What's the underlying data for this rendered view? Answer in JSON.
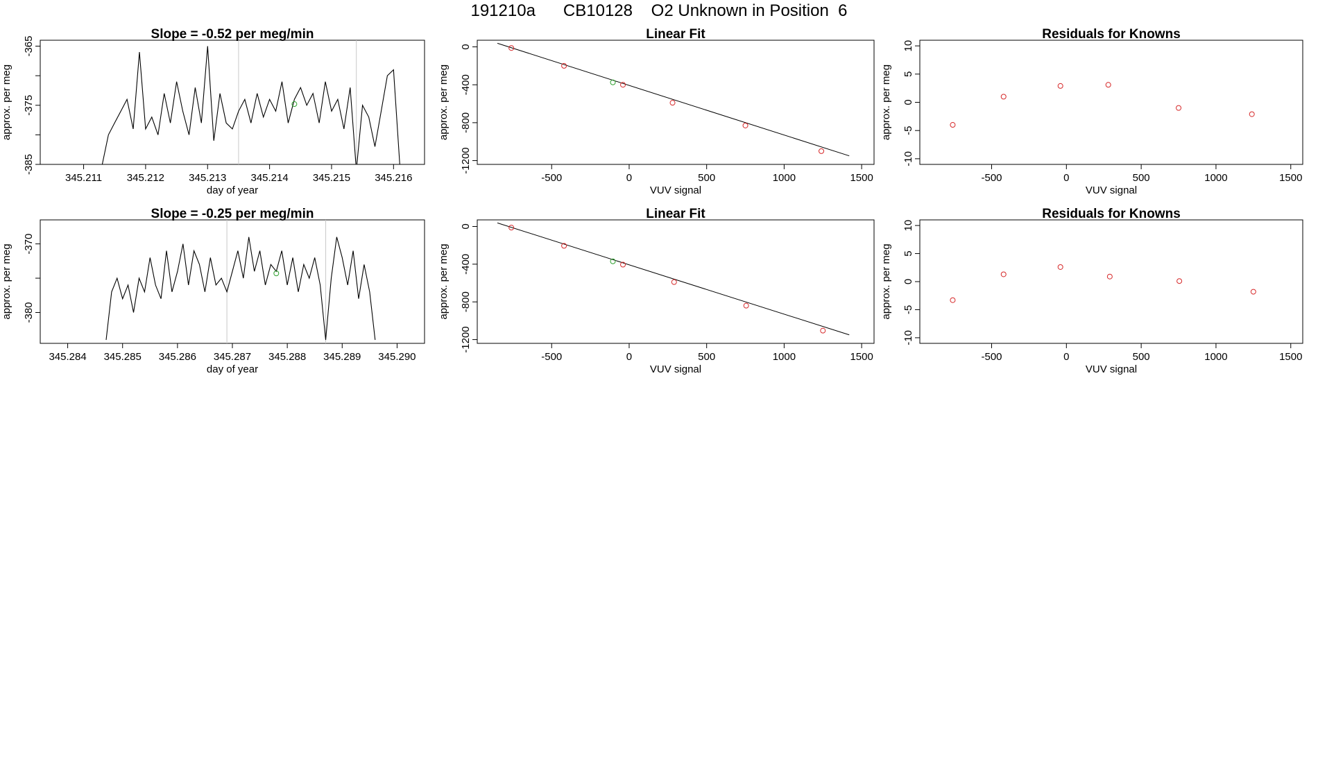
{
  "page": {
    "title": "191210a      CB10128    O2 Unknown in Position  6"
  },
  "colors": {
    "frame": "#000000",
    "line": "#000000",
    "known_points": "#d62728",
    "unknown_point": "#2ca02c",
    "marker_lines": "#c8c8c8"
  },
  "chart_data": [
    {
      "id": "ts1",
      "type": "line",
      "title": "Slope =  -0.52  per meg/min",
      "xlabel": "day of year",
      "ylabel": "approx. per meg",
      "xlim": [
        345.2103,
        345.2165
      ],
      "ylim": [
        -385,
        -364
      ],
      "xticks": [
        345.211,
        345.212,
        345.213,
        345.214,
        345.215,
        345.216
      ],
      "xtick_labels": [
        "345.211",
        "345.212",
        "345.213",
        "345.214",
        "345.215",
        "345.216"
      ],
      "yticks": [
        -385,
        -380,
        -375,
        -370,
        -365
      ],
      "ytick_labels": [
        "-385",
        "",
        "-375",
        "",
        "-365"
      ],
      "marker_lines": [
        345.2135,
        345.2154
      ],
      "unknown_point": {
        "x": 345.2144,
        "y": -374.8
      },
      "series": [
        {
          "x": [
            345.2113,
            345.2114,
            345.2115,
            345.2116,
            345.2117,
            345.2118,
            345.2119,
            345.212,
            345.2121,
            345.2122,
            345.2123,
            345.2124,
            345.2125,
            345.2126,
            345.2127,
            345.2128,
            345.2129,
            345.213,
            345.2131,
            345.2132,
            345.2133,
            345.2134,
            345.2135,
            345.2136,
            345.2137,
            345.2138,
            345.2139,
            345.214,
            345.2141,
            345.2142,
            345.2143,
            345.2144,
            345.2145,
            345.2146,
            345.2147,
            345.2148,
            345.2149,
            345.215,
            345.2151,
            345.2152,
            345.2153,
            345.2154,
            345.2155,
            345.2156,
            345.2157,
            345.2158,
            345.2159,
            345.216,
            345.2161
          ],
          "y": [
            -385,
            -380,
            -378,
            -376,
            -374,
            -379,
            -366,
            -379,
            -377,
            -380,
            -373,
            -378,
            -371,
            -376,
            -380,
            -372,
            -378,
            -365,
            -381,
            -373,
            -378,
            -379,
            -376,
            -374,
            -378,
            -373,
            -377,
            -374,
            -376,
            -371,
            -378,
            -374,
            -372,
            -375,
            -373,
            -378,
            -371,
            -376,
            -374,
            -379,
            -372,
            -386,
            -375,
            -377,
            -382,
            -376,
            -370,
            -369,
            -385
          ]
        }
      ]
    },
    {
      "id": "fit1",
      "type": "scatter",
      "title": "Linear Fit",
      "xlabel": "VUV signal",
      "ylabel": "approx. per meg",
      "xlim": [
        -980,
        1580
      ],
      "ylim": [
        -1240,
        70
      ],
      "xticks": [
        -500,
        0,
        500,
        1000,
        1500
      ],
      "xtick_labels": [
        "-500",
        "0",
        "500",
        "1000",
        "1500"
      ],
      "yticks": [
        0,
        -400,
        -800,
        -1200
      ],
      "ytick_labels": [
        "0",
        "-400",
        "-800",
        "-1200"
      ],
      "fit_line": {
        "x": [
          -850,
          1420
        ],
        "y": [
          38,
          -1150
        ]
      },
      "knowns": {
        "x": [
          -760,
          -420,
          -40,
          280,
          750,
          1240
        ],
        "y": [
          -12,
          -200,
          -400,
          -590,
          -830,
          -1100
        ]
      },
      "unknown_point": {
        "x": -105,
        "y": -375
      }
    },
    {
      "id": "res1",
      "type": "scatter",
      "title": "Residuals for Knowns",
      "xlabel": "VUV signal",
      "ylabel": "approx. per meg",
      "xlim": [
        -980,
        1580
      ],
      "ylim": [
        -11,
        11
      ],
      "xticks": [
        -500,
        0,
        500,
        1000,
        1500
      ],
      "xtick_labels": [
        "-500",
        "0",
        "500",
        "1000",
        "1500"
      ],
      "yticks": [
        -10,
        -5,
        0,
        5,
        10
      ],
      "ytick_labels": [
        "-10",
        "-5",
        "0",
        "5",
        "10"
      ],
      "knowns": {
        "x": [
          -760,
          -420,
          -40,
          280,
          750,
          1240
        ],
        "y": [
          -4.0,
          1.0,
          2.9,
          3.1,
          -1.0,
          -2.1
        ]
      }
    },
    {
      "id": "ts2",
      "type": "line",
      "title": "Slope =  -0.25  per meg/min",
      "xlabel": "day of year",
      "ylabel": "approx. per meg",
      "xlim": [
        345.2835,
        345.2905
      ],
      "ylim": [
        -384.5,
        -366.5
      ],
      "xticks": [
        345.284,
        345.285,
        345.286,
        345.287,
        345.288,
        345.289,
        345.29
      ],
      "xtick_labels": [
        "345.284",
        "345.285",
        "345.286",
        "345.287",
        "345.288",
        "345.289",
        "345.290"
      ],
      "yticks": [
        -380,
        -375,
        -370
      ],
      "ytick_labels": [
        "-380",
        "",
        "-370"
      ],
      "marker_lines": [
        345.2869,
        345.2887
      ],
      "unknown_point": {
        "x": 345.2878,
        "y": -374.3
      },
      "series": [
        {
          "x": [
            345.2847,
            345.2848,
            345.2849,
            345.285,
            345.2851,
            345.2852,
            345.2853,
            345.2854,
            345.2855,
            345.2856,
            345.2857,
            345.2858,
            345.2859,
            345.286,
            345.2861,
            345.2862,
            345.2863,
            345.2864,
            345.2865,
            345.2866,
            345.2867,
            345.2868,
            345.2869,
            345.287,
            345.2871,
            345.2872,
            345.2873,
            345.2874,
            345.2875,
            345.2876,
            345.2877,
            345.2878,
            345.2879,
            345.288,
            345.2881,
            345.2882,
            345.2883,
            345.2884,
            345.2885,
            345.2886,
            345.2887,
            345.2888,
            345.2889,
            345.289,
            345.2891,
            345.2892,
            345.2893,
            345.2894,
            345.2895,
            345.2896
          ],
          "y": [
            -384,
            -377,
            -375,
            -378,
            -376,
            -380,
            -375,
            -377,
            -372,
            -376,
            -378,
            -371,
            -377,
            -374,
            -370,
            -376,
            -371,
            -373,
            -377,
            -372,
            -376,
            -375,
            -377,
            -374,
            -371,
            -375,
            -369,
            -374,
            -371,
            -376,
            -373,
            -374,
            -371,
            -376,
            -372,
            -377,
            -373,
            -375,
            -372,
            -376,
            -384,
            -375,
            -369,
            -372,
            -376,
            -371,
            -378,
            -373,
            -377,
            -384
          ]
        }
      ]
    },
    {
      "id": "fit2",
      "type": "scatter",
      "title": "Linear Fit",
      "xlabel": "VUV signal",
      "ylabel": "approx. per meg",
      "xlim": [
        -980,
        1580
      ],
      "ylim": [
        -1240,
        70
      ],
      "xticks": [
        -500,
        0,
        500,
        1000,
        1500
      ],
      "xtick_labels": [
        "-500",
        "0",
        "500",
        "1000",
        "1500"
      ],
      "yticks": [
        0,
        -400,
        -800,
        -1200
      ],
      "ytick_labels": [
        "0",
        "-400",
        "-800",
        "-1200"
      ],
      "fit_line": {
        "x": [
          -850,
          1420
        ],
        "y": [
          38,
          -1150
        ]
      },
      "knowns": {
        "x": [
          -760,
          -420,
          -40,
          290,
          755,
          1250
        ],
        "y": [
          -12,
          -205,
          -405,
          -590,
          -840,
          -1105
        ]
      },
      "unknown_point": {
        "x": -105,
        "y": -370
      }
    },
    {
      "id": "res2",
      "type": "scatter",
      "title": "Residuals for Knowns",
      "xlabel": "VUV signal",
      "ylabel": "approx. per meg",
      "xlim": [
        -980,
        1580
      ],
      "ylim": [
        -11,
        11
      ],
      "xticks": [
        -500,
        0,
        500,
        1000,
        1500
      ],
      "xtick_labels": [
        "-500",
        "0",
        "500",
        "1000",
        "1500"
      ],
      "yticks": [
        -10,
        -5,
        0,
        5,
        10
      ],
      "ytick_labels": [
        "-10",
        "-5",
        "0",
        "5",
        "10"
      ],
      "knowns": {
        "x": [
          -760,
          -420,
          -40,
          290,
          755,
          1250
        ],
        "y": [
          -3.3,
          1.3,
          2.6,
          0.9,
          0.1,
          -1.8
        ]
      }
    }
  ]
}
